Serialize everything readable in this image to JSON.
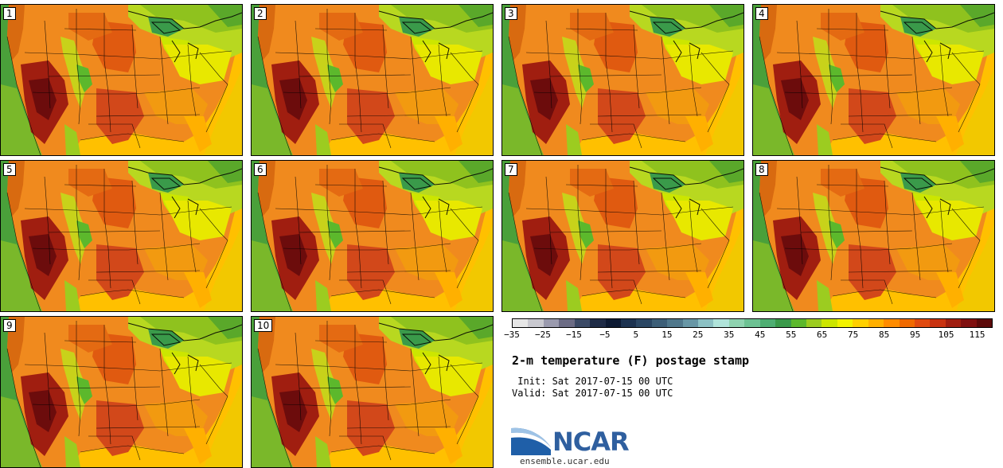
{
  "panels": [
    {
      "label": "1"
    },
    {
      "label": "2"
    },
    {
      "label": "3"
    },
    {
      "label": "4"
    },
    {
      "label": "5"
    },
    {
      "label": "6"
    },
    {
      "label": "7"
    },
    {
      "label": "8"
    },
    {
      "label": "9"
    },
    {
      "label": "10"
    }
  ],
  "colorbar": {
    "colors": [
      "#e6e6e6",
      "#c8c8cf",
      "#9a9aae",
      "#6c6c85",
      "#3c4a66",
      "#1e2b46",
      "#0d1a33",
      "#1c3250",
      "#2b4764",
      "#3d5f78",
      "#50788c",
      "#6897a6",
      "#8cc1c4",
      "#b0e4da",
      "#8fd3b0",
      "#6dc293",
      "#4eae72",
      "#3a9a4a",
      "#5cb82c",
      "#9ccc20",
      "#cce600",
      "#f2f200",
      "#ffd000",
      "#ffb000",
      "#ff8c00",
      "#f06a00",
      "#e04a10",
      "#c83210",
      "#a01e10",
      "#801010",
      "#5c0a0a"
    ],
    "tick_labels": [
      "−35",
      "−25",
      "−15",
      "−5",
      "5",
      "15",
      "25",
      "35",
      "45",
      "55",
      "65",
      "75",
      "85",
      "95",
      "105",
      "115"
    ]
  },
  "title": "2-m temperature (F) postage stamp",
  "init_line": " Init: Sat 2017-07-15 00 UTC",
  "valid_line": "Valid: Sat 2017-07-15 00 UTC",
  "logo": {
    "text": "NCAR"
  },
  "site": "ensemble.ucar.edu"
}
